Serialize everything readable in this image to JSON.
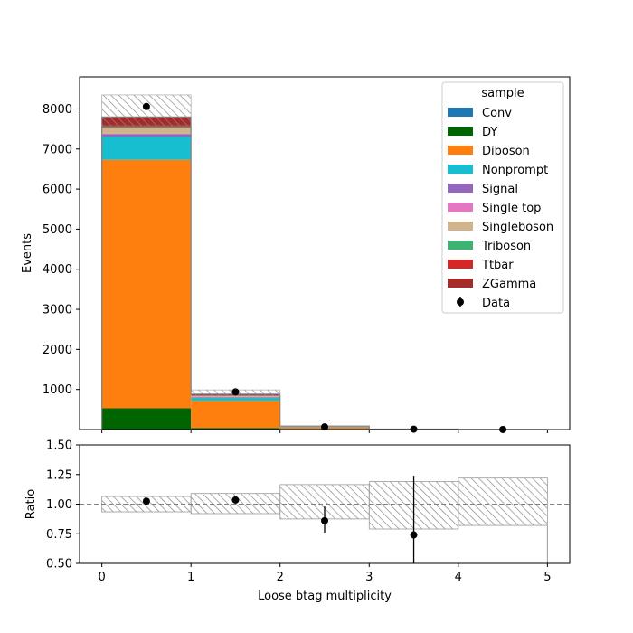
{
  "chart_data": [
    {
      "type": "bar",
      "stacked": true,
      "xlabel": "",
      "ylabel": "Events",
      "ylim": [
        0,
        8800
      ],
      "yticks": [
        1000,
        2000,
        3000,
        4000,
        5000,
        6000,
        7000,
        8000
      ],
      "xlim": [
        -0.25,
        5.25
      ],
      "bins": [
        [
          0,
          1
        ],
        [
          1,
          2
        ],
        [
          2,
          3
        ],
        [
          3,
          4
        ],
        [
          4,
          5
        ]
      ],
      "series": [
        {
          "name": "Conv",
          "color": "#1f77b4",
          "values": [
            0,
            0,
            0,
            0,
            0
          ]
        },
        {
          "name": "DY",
          "color": "#006400",
          "values": [
            530,
            40,
            8,
            1,
            0
          ]
        },
        {
          "name": "Diboson",
          "color": "#ff7f0e",
          "values": [
            6200,
            680,
            40,
            4,
            1
          ]
        },
        {
          "name": "Nonprompt",
          "color": "#17becf",
          "values": [
            580,
            70,
            15,
            2,
            0
          ]
        },
        {
          "name": "Signal",
          "color": "#9467bd",
          "values": [
            60,
            15,
            4,
            1,
            0
          ]
        },
        {
          "name": "Single top",
          "color": "#e377c2",
          "values": [
            10,
            8,
            4,
            1,
            0
          ]
        },
        {
          "name": "Singleboson",
          "color": "#d2b48c",
          "values": [
            140,
            25,
            5,
            1,
            0
          ]
        },
        {
          "name": "Triboson",
          "color": "#3cb371",
          "values": [
            20,
            4,
            1,
            0,
            0
          ]
        },
        {
          "name": "Ttbar",
          "color": "#d62728",
          "values": [
            15,
            10,
            5,
            2,
            0
          ]
        },
        {
          "name": "ZGamma",
          "color": "#a52a2a",
          "values": [
            245,
            30,
            5,
            1,
            0
          ]
        }
      ],
      "uncertainty": {
        "down": [
          7580,
          840,
          70,
          10,
          1
        ],
        "up": [
          8350,
          990,
          93,
          15,
          2
        ]
      },
      "data": {
        "name": "Data",
        "x": [
          0.5,
          1.5,
          2.5,
          3.5,
          4.5
        ],
        "y": [
          8060,
          940,
          65,
          9,
          1
        ]
      },
      "legend": {
        "title": "sample",
        "position": "top-right"
      }
    },
    {
      "type": "step",
      "xlabel": "Loose btag multiplicity",
      "ylabel": "Ratio",
      "ylim": [
        0.5,
        1.5
      ],
      "yticks": [
        "0.50",
        "0.75",
        "1.00",
        "1.25",
        "1.50"
      ],
      "xticks": [
        "0",
        "1",
        "2",
        "3",
        "4",
        "5"
      ],
      "xlim": [
        -0.25,
        5.25
      ],
      "reference_line": 1.0,
      "band": {
        "bins": [
          [
            0,
            1
          ],
          [
            1,
            2
          ],
          [
            2,
            3
          ],
          [
            3,
            4
          ],
          [
            4,
            5
          ]
        ],
        "down": [
          0.935,
          0.92,
          0.875,
          0.79,
          0.82
        ],
        "up": [
          1.065,
          1.09,
          1.165,
          1.19,
          1.22
        ]
      },
      "points": {
        "x": [
          0.5,
          1.5,
          2.5,
          3.5
        ],
        "y": [
          1.025,
          1.035,
          0.86,
          0.74
        ],
        "err_low": [
          0.02,
          0.03,
          0.1,
          0.3
        ],
        "err_high": [
          0.02,
          0.03,
          0.12,
          0.5
        ]
      }
    }
  ]
}
